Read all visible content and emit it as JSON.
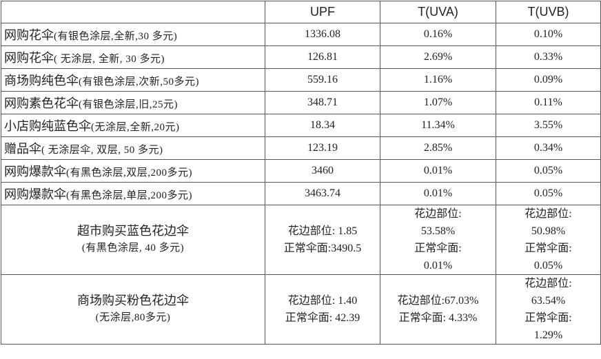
{
  "table": {
    "header": [
      "UPF",
      "T(UVA)",
      "T(UVB)"
    ],
    "rows": [
      {
        "name": "网购花伞",
        "note": "(有银色涂层,全新,30 多元)",
        "upf": "1336.08",
        "uva": "0.16%",
        "uvb": "0.10%"
      },
      {
        "name": "网购花伞",
        "note": "( 无涂层, 全新, 30 多元)",
        "upf": "126.81",
        "uva": "2.69%",
        "uvb": "0.33%"
      },
      {
        "name": "商场购纯色伞",
        "note": "(有银色涂层,次新,50多元)",
        "upf": "559.16",
        "uva": "1.16%",
        "uvb": "0.09%"
      },
      {
        "name": "网购素色花伞",
        "note": "(有银色涂层,旧,25元)",
        "upf": "348.71",
        "uva": "1.07%",
        "uvb": "0.11%"
      },
      {
        "name": "小店购纯蓝色伞",
        "note": "(无涂层,全新,20元)",
        "upf": "18.34",
        "uva": "11.34%",
        "uvb": "3.55%"
      },
      {
        "name": "赠品伞",
        "note": "( 无涂层伞, 双层, 50 多元)",
        "upf": "123.19",
        "uva": "2.85%",
        "uvb": "0.34%"
      },
      {
        "name": "网购爆款伞",
        "note": "(有黑色涂层,双层,200多元)",
        "upf": "3460",
        "uva": "0.01%",
        "uvb": "0.05%"
      },
      {
        "name": "网购爆款伞",
        "note": "(有黑色涂层,单层,200多元)",
        "upf": "3463.74",
        "uva": "0.01%",
        "uvb": "0.05%"
      },
      {
        "name": "超市购买蓝色花边伞",
        "note": "(有黑色涂层, 40 多元)",
        "upf": [
          "花边部位: 1.85",
          "正常伞面:3490.5"
        ],
        "uva": [
          "花边部位:",
          "53.58%",
          "正常伞面:",
          "0.01%"
        ],
        "uvb": [
          "花边部位:",
          "50.98%",
          "正常伞面:",
          "0.05%"
        ]
      },
      {
        "name": "商场购买粉色花边伞",
        "note": "(无涂层,80多元)",
        "upf": [
          "花边部位: 1.40",
          "正常伞面: 42.39"
        ],
        "uva": [
          "花边部位:67.03%",
          "正常伞面: 4.33%"
        ],
        "uvb": [
          "花边部位:",
          "63.54%",
          "正常伞面:",
          "1.29%"
        ]
      }
    ]
  }
}
